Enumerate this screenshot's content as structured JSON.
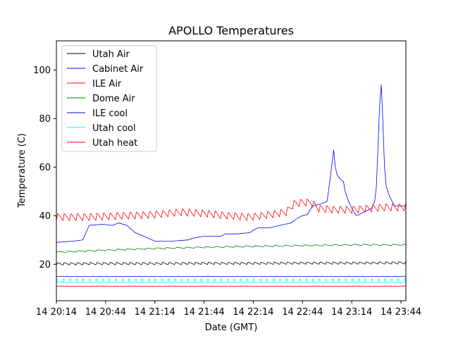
{
  "chart_data": {
    "type": "line",
    "title": "APOLLO Temperatures",
    "xlabel": "Date (GMT)",
    "ylabel": "Temperature (C)",
    "xlim": [
      0,
      213
    ],
    "ylim": [
      5,
      112
    ],
    "yticks": [
      20,
      40,
      60,
      80,
      100
    ],
    "xticks": [
      {
        "label": "14 20:14",
        "at": 0
      },
      {
        "label": "14 20:44",
        "at": 30
      },
      {
        "label": "14 21:14",
        "at": 60
      },
      {
        "label": "14 21:44",
        "at": 90
      },
      {
        "label": "14 22:14",
        "at": 120
      },
      {
        "label": "14 22:44",
        "at": 150
      },
      {
        "label": "14 23:14",
        "at": 180
      },
      {
        "label": "14 23:44",
        "at": 210
      }
    ],
    "legend": "upper-left",
    "series": [
      {
        "name": "Utah Air",
        "color": "#000000",
        "x": [
          0,
          30,
          60,
          90,
          120,
          150,
          180,
          213
        ],
        "values": [
          20.2,
          20.3,
          20.3,
          20.4,
          20.4,
          20.5,
          20.5,
          20.6
        ],
        "oscillation": {
          "amplitude": 0.5,
          "period_min": 4
        }
      },
      {
        "name": "Cabinet Air",
        "color": "#0000ff",
        "x": [
          0,
          10,
          16,
          20,
          28,
          34,
          38,
          43,
          48,
          55,
          60,
          70,
          80,
          85,
          90,
          95,
          100,
          103,
          110,
          118,
          120,
          123,
          130,
          136,
          143,
          147,
          150,
          153,
          156,
          162,
          165,
          167,
          169,
          170,
          171,
          173,
          175,
          176,
          177,
          178,
          180,
          183,
          186,
          189,
          192,
          194,
          195,
          197,
          198,
          199,
          200,
          201,
          203,
          206,
          209,
          211,
          213
        ],
        "values": [
          29,
          29.5,
          30,
          36,
          36.5,
          36,
          37,
          36,
          33,
          31,
          29.5,
          29.5,
          30,
          31,
          31.5,
          31.5,
          31.5,
          32.5,
          32.5,
          33,
          34,
          35,
          35,
          36,
          37,
          39,
          40,
          40.5,
          44,
          45,
          46,
          56,
          67,
          60,
          57,
          55,
          54,
          50,
          48,
          46,
          43,
          40,
          41,
          42,
          43,
          46,
          52,
          85,
          94,
          78,
          60,
          52,
          48,
          44,
          44,
          44,
          44
        ]
      },
      {
        "name": "ILE Air",
        "color": "#ff0000",
        "x": [
          0,
          20,
          40,
          60,
          75,
          90,
          105,
          118,
          125,
          140,
          145,
          150,
          155,
          160,
          170,
          175,
          180,
          190,
          200,
          213
        ],
        "values": [
          39.5,
          39.5,
          40,
          40.5,
          41.5,
          41,
          40,
          39.5,
          40,
          41.5,
          45,
          45.5,
          45.5,
          43,
          42.5,
          42.5,
          42.5,
          43,
          43.5,
          43.5
        ],
        "oscillation": {
          "amplitude": 1.5,
          "period_min": 4
        }
      },
      {
        "name": "Dome Air",
        "color": "#008000",
        "x": [
          0,
          30,
          60,
          90,
          120,
          150,
          180,
          213
        ],
        "values": [
          25,
          25.8,
          26.5,
          27,
          27.4,
          27.7,
          28,
          28
        ],
        "oscillation": {
          "amplitude": 0.3,
          "period_min": 6
        }
      },
      {
        "name": "ILE cool",
        "color": "#0000cc",
        "x": [
          0,
          213
        ],
        "values": [
          15,
          15
        ]
      },
      {
        "name": "Utah cool",
        "color": "#00ffff",
        "x": [
          0,
          213
        ],
        "values": [
          12.5,
          12.5
        ],
        "pulse": {
          "high": 14,
          "period_min": 4
        }
      },
      {
        "name": "Utah heat",
        "color": "#ff0000",
        "x": [
          0,
          213
        ],
        "values": [
          11,
          11
        ]
      }
    ]
  }
}
